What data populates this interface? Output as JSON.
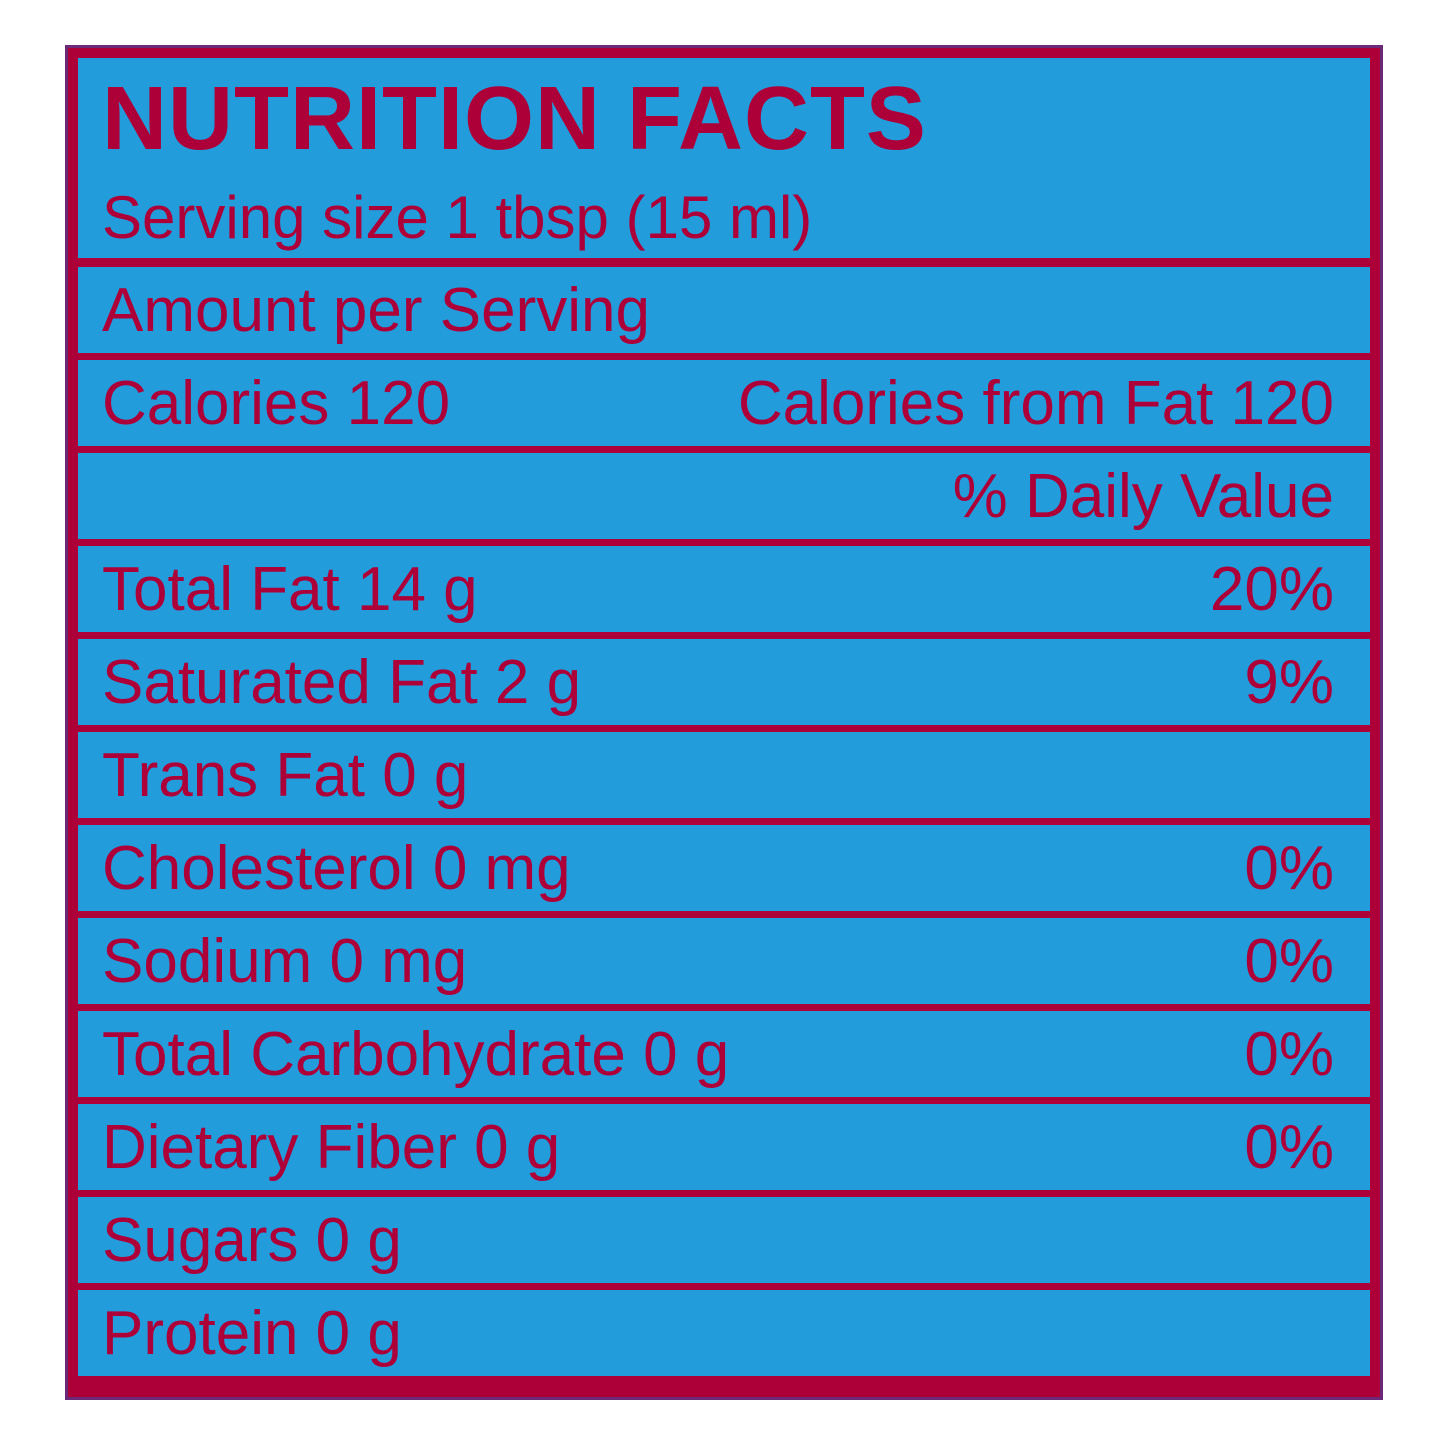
{
  "label": {
    "title": "NUTRITION FACTS",
    "serving_size": "Serving size 1 tbsp (15 ml)",
    "amount_per_serving": "Amount per Serving",
    "calories": "Calories 120",
    "calories_from_fat": "Calories from Fat 120",
    "daily_value_header": "% Daily Value",
    "nutrients": [
      {
        "name": "Total Fat 14 g",
        "dv": "20%"
      },
      {
        "name": "Saturated Fat 2 g",
        "dv": "9%"
      },
      {
        "name": "Trans Fat 0 g",
        "dv": ""
      },
      {
        "name": "Cholesterol 0 mg",
        "dv": "0%"
      },
      {
        "name": "Sodium 0 mg",
        "dv": "0%"
      },
      {
        "name": "Total Carbohydrate 0 g",
        "dv": "0%"
      },
      {
        "name": "Dietary Fiber 0 g",
        "dv": "0%"
      },
      {
        "name": "Sugars 0 g",
        "dv": ""
      },
      {
        "name": "Protein 0 g",
        "dv": ""
      }
    ]
  },
  "colors": {
    "panel_blue": "#239cdc",
    "text_red": "#ad0038",
    "frame_outline": "#6a2a78"
  }
}
